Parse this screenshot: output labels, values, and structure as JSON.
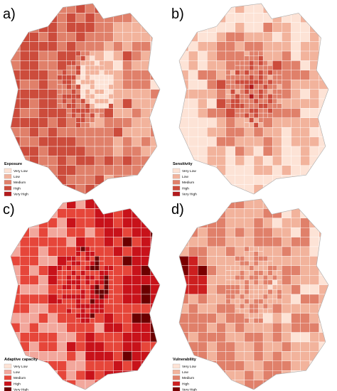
{
  "panels": [
    {
      "label": "a)",
      "legend": {
        "title": "Exposure",
        "items": [
          {
            "label": "Very Low",
            "color": "#fde3d6"
          },
          {
            "label": "Low",
            "color": "#f2b39c"
          },
          {
            "label": "Medium",
            "color": "#e0806a"
          },
          {
            "label": "High",
            "color": "#cc4c3c"
          },
          {
            "label": "Very High",
            "color": "#b3191b"
          }
        ]
      }
    },
    {
      "label": "b)",
      "legend": {
        "title": "Sensitivity",
        "items": [
          {
            "label": "Very Low",
            "color": "#fde3d6"
          },
          {
            "label": "Low",
            "color": "#f2b39c"
          },
          {
            "label": "Medium",
            "color": "#e0806a"
          },
          {
            "label": "High",
            "color": "#cc4c3c"
          },
          {
            "label": "Very High",
            "color": "#b3191b"
          }
        ]
      }
    },
    {
      "label": "c)",
      "legend": {
        "title": "Adaptive capacity",
        "items": [
          {
            "label": "Very Low",
            "color": "#fde3d6"
          },
          {
            "label": "Low",
            "color": "#f2a79c"
          },
          {
            "label": "Medium",
            "color": "#e6463a"
          },
          {
            "label": "High",
            "color": "#c8121a"
          },
          {
            "label": "Very High",
            "color": "#6b0000"
          }
        ]
      }
    },
    {
      "label": "d)",
      "legend": {
        "title": "Vulnerability",
        "items": [
          {
            "label": "Very Low",
            "color": "#fde3d6"
          },
          {
            "label": "Low",
            "color": "#f2b39c"
          },
          {
            "label": "Medium",
            "color": "#e0806a"
          },
          {
            "label": "High",
            "color": "#cc1f1f"
          },
          {
            "label": "Very High",
            "color": "#7a0000"
          }
        ]
      }
    }
  ]
}
